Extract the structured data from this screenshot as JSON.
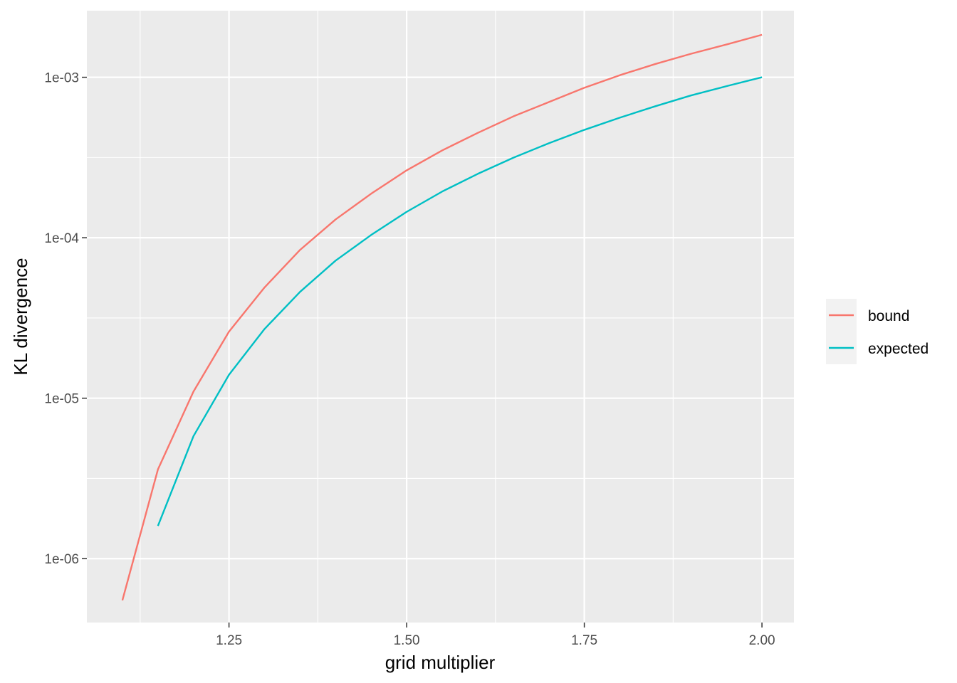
{
  "chart_data": {
    "type": "line",
    "title": "",
    "xlabel": "grid multiplier",
    "ylabel": "KL divergence",
    "xlim": [
      1.05,
      2.045
    ],
    "ylim": [
      4e-07,
      0.0026
    ],
    "y_scale": "log10",
    "x_ticks": [
      {
        "value": 1.25,
        "label": "1.25"
      },
      {
        "value": 1.5,
        "label": "1.50"
      },
      {
        "value": 1.75,
        "label": "1.75"
      },
      {
        "value": 2.0,
        "label": "2.00"
      }
    ],
    "y_ticks": [
      {
        "value": 1e-06,
        "label": "1e-06"
      },
      {
        "value": 1e-05,
        "label": "1e-05"
      },
      {
        "value": 0.0001,
        "label": "1e-04"
      },
      {
        "value": 0.001,
        "label": "1e-03"
      }
    ],
    "grid": true,
    "legend_position": "right",
    "series": [
      {
        "name": "bound",
        "color": "#F8766D",
        "x": [
          1.1,
          1.15,
          1.2,
          1.25,
          1.3,
          1.35,
          1.4,
          1.45,
          1.5,
          1.55,
          1.6,
          1.65,
          1.7,
          1.75,
          1.8,
          1.85,
          1.9,
          1.95,
          2.0
        ],
        "y": [
          5.5e-07,
          3.6e-06,
          1.1e-05,
          2.6e-05,
          4.9e-05,
          8.4e-05,
          0.00013,
          0.000188,
          0.000263,
          0.00035,
          0.00045,
          0.00057,
          0.0007,
          0.00086,
          0.00103,
          0.00121,
          0.0014,
          0.0016,
          0.00184
        ]
      },
      {
        "name": "expected",
        "color": "#00BFC4",
        "x": [
          1.15,
          1.2,
          1.25,
          1.3,
          1.35,
          1.4,
          1.45,
          1.5,
          1.55,
          1.6,
          1.65,
          1.7,
          1.75,
          1.8,
          1.85,
          1.9,
          1.95,
          2.0
        ],
        "y": [
          1.6e-06,
          5.8e-06,
          1.4e-05,
          2.7e-05,
          4.6e-05,
          7.2e-05,
          0.000104,
          0.000145,
          0.000194,
          0.00025,
          0.000315,
          0.000388,
          0.00047,
          0.00056,
          0.00066,
          0.00077,
          0.00088,
          0.001
        ]
      }
    ]
  }
}
